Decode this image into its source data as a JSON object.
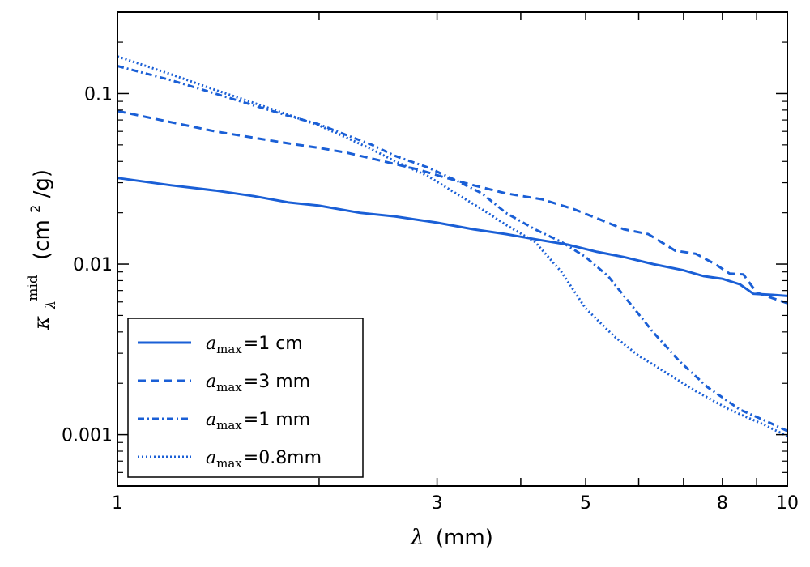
{
  "chart_data": {
    "type": "line",
    "xscale": "log",
    "yscale": "log",
    "xlim": [
      1,
      10
    ],
    "ylim": [
      0.0005,
      0.3
    ],
    "xlabel": {
      "symbol": "λ",
      "unit": "(mm)"
    },
    "ylabel": {
      "symbol": "κ",
      "subscript": "λ",
      "superscript": "mid",
      "unit_pre": "(cm",
      "unit_sup": "2",
      "unit_post": " /g)"
    },
    "x_ticks": [
      {
        "value": 1,
        "label": "1"
      },
      {
        "value": 3,
        "label": "3"
      },
      {
        "value": 5,
        "label": "5"
      },
      {
        "value": 8,
        "label": "8"
      },
      {
        "value": 10,
        "label": "10"
      }
    ],
    "y_ticks": [
      {
        "value": 0.001,
        "label": "0.001"
      },
      {
        "value": 0.01,
        "label": "0.01"
      },
      {
        "value": 0.1,
        "label": "0.1"
      }
    ],
    "grid": false,
    "legend_position": "bottom-left",
    "color": "#1a5fd6",
    "series": [
      {
        "name": {
          "prefix": "a",
          "sub": "max",
          "value": "=1 cm"
        },
        "style": "solid",
        "points": [
          [
            1,
            0.032
          ],
          [
            1.2,
            0.029
          ],
          [
            1.4,
            0.027
          ],
          [
            1.6,
            0.025
          ],
          [
            1.8,
            0.023
          ],
          [
            2.0,
            0.022
          ],
          [
            2.3,
            0.02
          ],
          [
            2.6,
            0.019
          ],
          [
            3.0,
            0.0175
          ],
          [
            3.4,
            0.016
          ],
          [
            3.8,
            0.015
          ],
          [
            4.2,
            0.014
          ],
          [
            4.7,
            0.013
          ],
          [
            5.2,
            0.0118
          ],
          [
            5.7,
            0.011
          ],
          [
            6.3,
            0.01
          ],
          [
            7.0,
            0.0092
          ],
          [
            7.5,
            0.0085
          ],
          [
            8.0,
            0.0082
          ],
          [
            8.5,
            0.0076
          ],
          [
            8.9,
            0.0067
          ],
          [
            9.5,
            0.0066
          ],
          [
            10,
            0.0065
          ]
        ]
      },
      {
        "name": {
          "prefix": "a",
          "sub": "max",
          "value": "=3 mm"
        },
        "style": "dashed",
        "points": [
          [
            1,
            0.079
          ],
          [
            1.2,
            0.068
          ],
          [
            1.4,
            0.06
          ],
          [
            1.6,
            0.055
          ],
          [
            1.8,
            0.051
          ],
          [
            2.0,
            0.048
          ],
          [
            2.2,
            0.045
          ],
          [
            2.5,
            0.04
          ],
          [
            2.8,
            0.036
          ],
          [
            3.1,
            0.032
          ],
          [
            3.4,
            0.029
          ],
          [
            3.8,
            0.026
          ],
          [
            4.3,
            0.024
          ],
          [
            4.8,
            0.021
          ],
          [
            5.3,
            0.018
          ],
          [
            5.7,
            0.016
          ],
          [
            6.2,
            0.015
          ],
          [
            6.8,
            0.012
          ],
          [
            7.3,
            0.0115
          ],
          [
            7.8,
            0.01
          ],
          [
            8.2,
            0.0088
          ],
          [
            8.6,
            0.0087
          ],
          [
            9.0,
            0.0068
          ],
          [
            10,
            0.0059
          ]
        ]
      },
      {
        "name": {
          "prefix": "a",
          "sub": "max",
          "value": "=1 mm"
        },
        "style": "dashdot",
        "points": [
          [
            1,
            0.145
          ],
          [
            1.2,
            0.12
          ],
          [
            1.4,
            0.1
          ],
          [
            1.6,
            0.085
          ],
          [
            1.8,
            0.074
          ],
          [
            2.0,
            0.066
          ],
          [
            2.2,
            0.057
          ],
          [
            2.4,
            0.05
          ],
          [
            2.6,
            0.043
          ],
          [
            2.9,
            0.037
          ],
          [
            3.2,
            0.031
          ],
          [
            3.5,
            0.026
          ],
          [
            3.8,
            0.02
          ],
          [
            4.2,
            0.016
          ],
          [
            4.6,
            0.0135
          ],
          [
            5.0,
            0.011
          ],
          [
            5.4,
            0.0085
          ],
          [
            5.8,
            0.006
          ],
          [
            6.3,
            0.004
          ],
          [
            6.9,
            0.0027
          ],
          [
            7.6,
            0.0019
          ],
          [
            8.5,
            0.0014
          ],
          [
            9.3,
            0.0012
          ],
          [
            10,
            0.00105
          ]
        ]
      },
      {
        "name": {
          "prefix": "a",
          "sub": "max",
          "value": "=0.8mm"
        },
        "style": "dotted",
        "points": [
          [
            1,
            0.165
          ],
          [
            1.2,
            0.13
          ],
          [
            1.4,
            0.105
          ],
          [
            1.6,
            0.088
          ],
          [
            1.8,
            0.075
          ],
          [
            2.0,
            0.065
          ],
          [
            2.2,
            0.055
          ],
          [
            2.4,
            0.047
          ],
          [
            2.6,
            0.04
          ],
          [
            2.9,
            0.033
          ],
          [
            3.2,
            0.026
          ],
          [
            3.5,
            0.021
          ],
          [
            3.8,
            0.017
          ],
          [
            4.2,
            0.0135
          ],
          [
            4.6,
            0.009
          ],
          [
            5.0,
            0.0055
          ],
          [
            5.5,
            0.0038
          ],
          [
            6.0,
            0.0029
          ],
          [
            6.6,
            0.0023
          ],
          [
            7.3,
            0.0018
          ],
          [
            8.2,
            0.0014
          ],
          [
            9.2,
            0.00115
          ],
          [
            10,
            0.00098
          ]
        ]
      }
    ]
  }
}
